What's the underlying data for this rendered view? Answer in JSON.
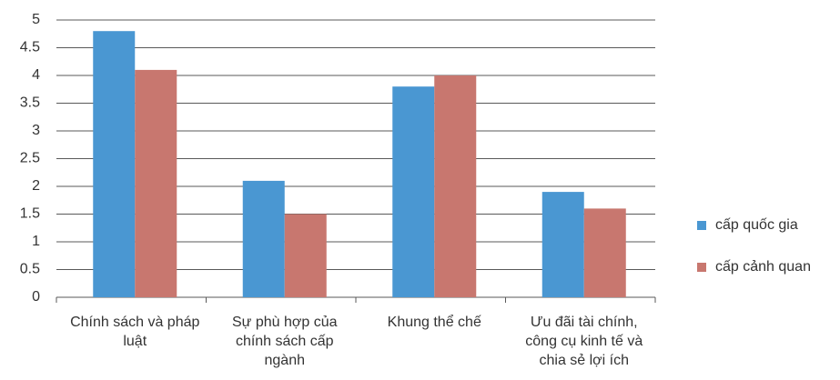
{
  "chart_data": {
    "type": "bar",
    "categories": [
      "Chính sách và pháp luật",
      "Sự phù hợp của chính sách cấp ngành",
      "Khung thể chế",
      "Ưu đãi tài chính, công cụ kinh tế và chia sẻ lợi ích"
    ],
    "series": [
      {
        "name": "cấp quốc gia",
        "color": "#4a97d2",
        "values": [
          4.8,
          2.1,
          3.8,
          1.9
        ]
      },
      {
        "name": "cấp cảnh quan",
        "color": "#c8776f",
        "values": [
          4.1,
          1.5,
          4.0,
          1.6
        ]
      }
    ],
    "ylim": [
      0,
      5
    ],
    "yticks": [
      0,
      0.5,
      1,
      1.5,
      2,
      2.5,
      3,
      3.5,
      4,
      4.5,
      5
    ],
    "grid": true,
    "legend": "right"
  }
}
